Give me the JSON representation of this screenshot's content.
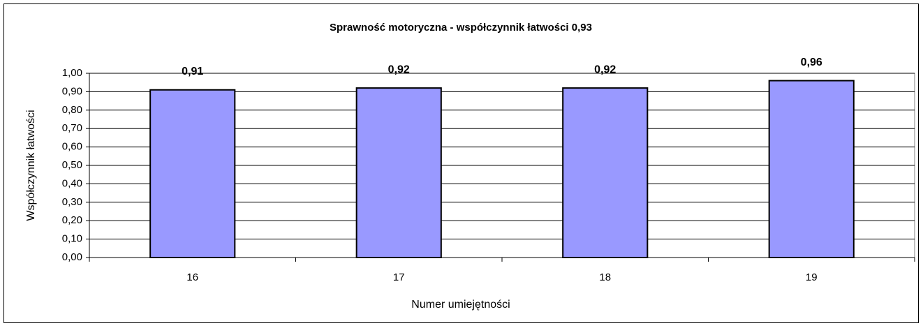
{
  "chart_data": {
    "type": "bar",
    "title": "Sprawność motoryczna - współczynnik łatwości 0,93",
    "x_label": "Numer umiejętności",
    "y_label": "Współczynnik łatwości",
    "categories": [
      "16",
      "17",
      "18",
      "19"
    ],
    "values": [
      0.91,
      0.92,
      0.92,
      0.96
    ],
    "value_labels": [
      "0,91",
      "0,92",
      "0,92",
      "0,96"
    ],
    "color": "#9999ff",
    "ylim": [
      0,
      1
    ],
    "yticks": [
      {
        "value": 0,
        "label": "0,00"
      },
      {
        "value": 0.1,
        "label": "0,10"
      },
      {
        "value": 0.2,
        "label": "0,20"
      },
      {
        "value": 0.3,
        "label": "0,30"
      },
      {
        "value": 0.4,
        "label": "0,40"
      },
      {
        "value": 0.5,
        "label": "0,50"
      },
      {
        "value": 0.6,
        "label": "0,60"
      },
      {
        "value": 0.7,
        "label": "0,70"
      },
      {
        "value": 0.8,
        "label": "0,80"
      },
      {
        "value": 0.9,
        "label": "0,90"
      },
      {
        "value": 1,
        "label": "1,00"
      }
    ],
    "grid": true
  }
}
